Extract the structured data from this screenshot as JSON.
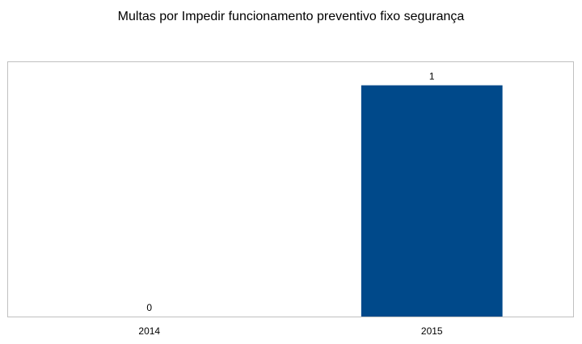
{
  "chart_data": {
    "type": "bar",
    "title": "Multas por Impedir funcionamento preventivo fixo segurança",
    "categories": [
      "2014",
      "2015"
    ],
    "values": [
      0,
      1
    ],
    "data_labels": [
      "0",
      "1"
    ],
    "xlabel": "",
    "ylabel": "",
    "ylim": [
      0,
      1.1
    ],
    "grid": false,
    "legend": "none",
    "bar_color": "#00498a",
    "plot_border_color": "#c0c0c0"
  }
}
